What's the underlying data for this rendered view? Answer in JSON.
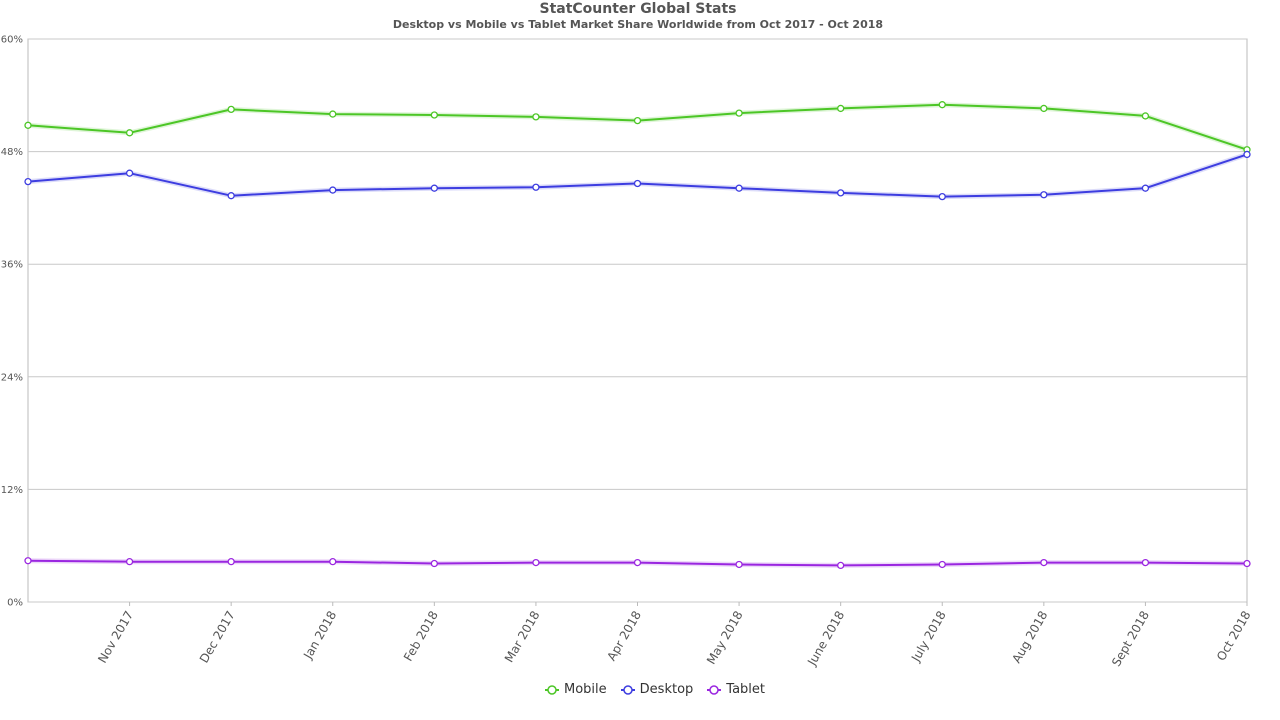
{
  "chart_data": {
    "type": "line",
    "title": "StatCounter Global Stats",
    "subtitle": "Desktop vs Mobile vs Tablet Market Share Worldwide from Oct 2017 - Oct 2018",
    "x": [
      "Oct 2017",
      "Nov 2017",
      "Dec 2017",
      "Jan 2018",
      "Feb 2018",
      "Mar 2018",
      "Apr 2018",
      "May 2018",
      "June 2018",
      "July 2018",
      "Aug 2018",
      "Sept 2018",
      "Oct 2018"
    ],
    "x_tick_labels": [
      "Nov 2017",
      "Dec 2017",
      "Jan 2018",
      "Feb 2018",
      "Mar 2018",
      "Apr 2018",
      "May 2018",
      "June 2018",
      "July 2018",
      "Aug 2018",
      "Sept 2018",
      "Oct 2018"
    ],
    "y_ticks": [
      "0%",
      "12%",
      "24%",
      "36%",
      "48%",
      "60%"
    ],
    "ylim": [
      0,
      60
    ],
    "grid": true,
    "legend_position": "bottom-center",
    "series": [
      {
        "name": "Mobile",
        "color": "#4cc626",
        "values": [
          50.8,
          50.0,
          52.5,
          52.0,
          51.9,
          51.7,
          51.3,
          52.1,
          52.6,
          53.0,
          52.6,
          51.8,
          48.2
        ]
      },
      {
        "name": "Desktop",
        "color": "#3d3de0",
        "values": [
          44.8,
          45.7,
          43.3,
          43.9,
          44.1,
          44.2,
          44.6,
          44.1,
          43.6,
          43.2,
          43.4,
          44.1,
          47.7
        ]
      },
      {
        "name": "Tablet",
        "color": "#9a26e0",
        "values": [
          4.4,
          4.3,
          4.3,
          4.3,
          4.1,
          4.2,
          4.2,
          4.0,
          3.9,
          4.0,
          4.2,
          4.2,
          4.1
        ]
      }
    ]
  },
  "legend": {
    "items": [
      {
        "label": "Mobile",
        "color": "#4cc626"
      },
      {
        "label": "Desktop",
        "color": "#3d3de0"
      },
      {
        "label": "Tablet",
        "color": "#9a26e0"
      }
    ]
  }
}
